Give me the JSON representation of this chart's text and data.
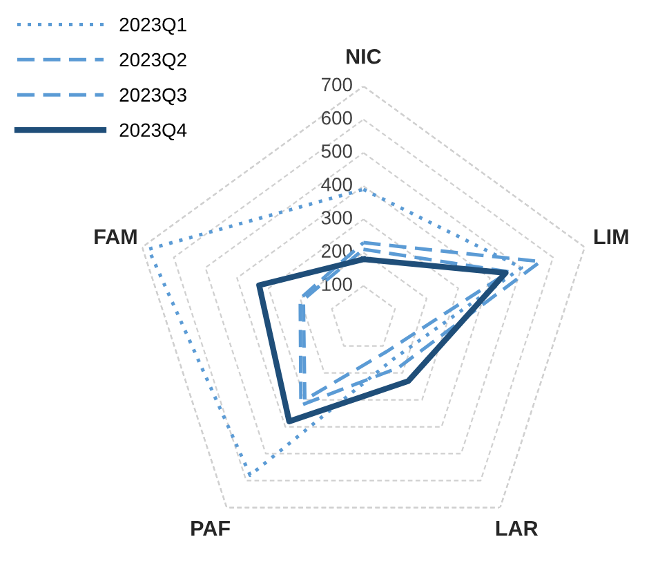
{
  "chart_data": {
    "type": "radar",
    "categories": [
      "NIC",
      "LIM",
      "LAR",
      "PAF",
      "FAM"
    ],
    "series": [
      {
        "name": "2023Q1",
        "color": "#5b9bd5",
        "line_style": "dotted",
        "values": [
          390,
          500,
          150,
          580,
          680
        ]
      },
      {
        "name": "2023Q2",
        "color": "#5b9bd5",
        "line_style": "dashed",
        "values": [
          230,
          560,
          180,
          320,
          200
        ]
      },
      {
        "name": "2023Q3",
        "color": "#5b9bd5",
        "line_style": "dashed",
        "values": [
          210,
          460,
          120,
          300,
          190
        ]
      },
      {
        "name": "2023Q4",
        "color": "#1f4e79",
        "line_style": "solid",
        "values": [
          180,
          450,
          230,
          380,
          330
        ]
      }
    ],
    "ylim": [
      0,
      700
    ],
    "yticks": [
      100,
      200,
      300,
      400,
      500,
      600,
      700
    ],
    "grid": true,
    "legend": "top left",
    "marker": "none"
  }
}
